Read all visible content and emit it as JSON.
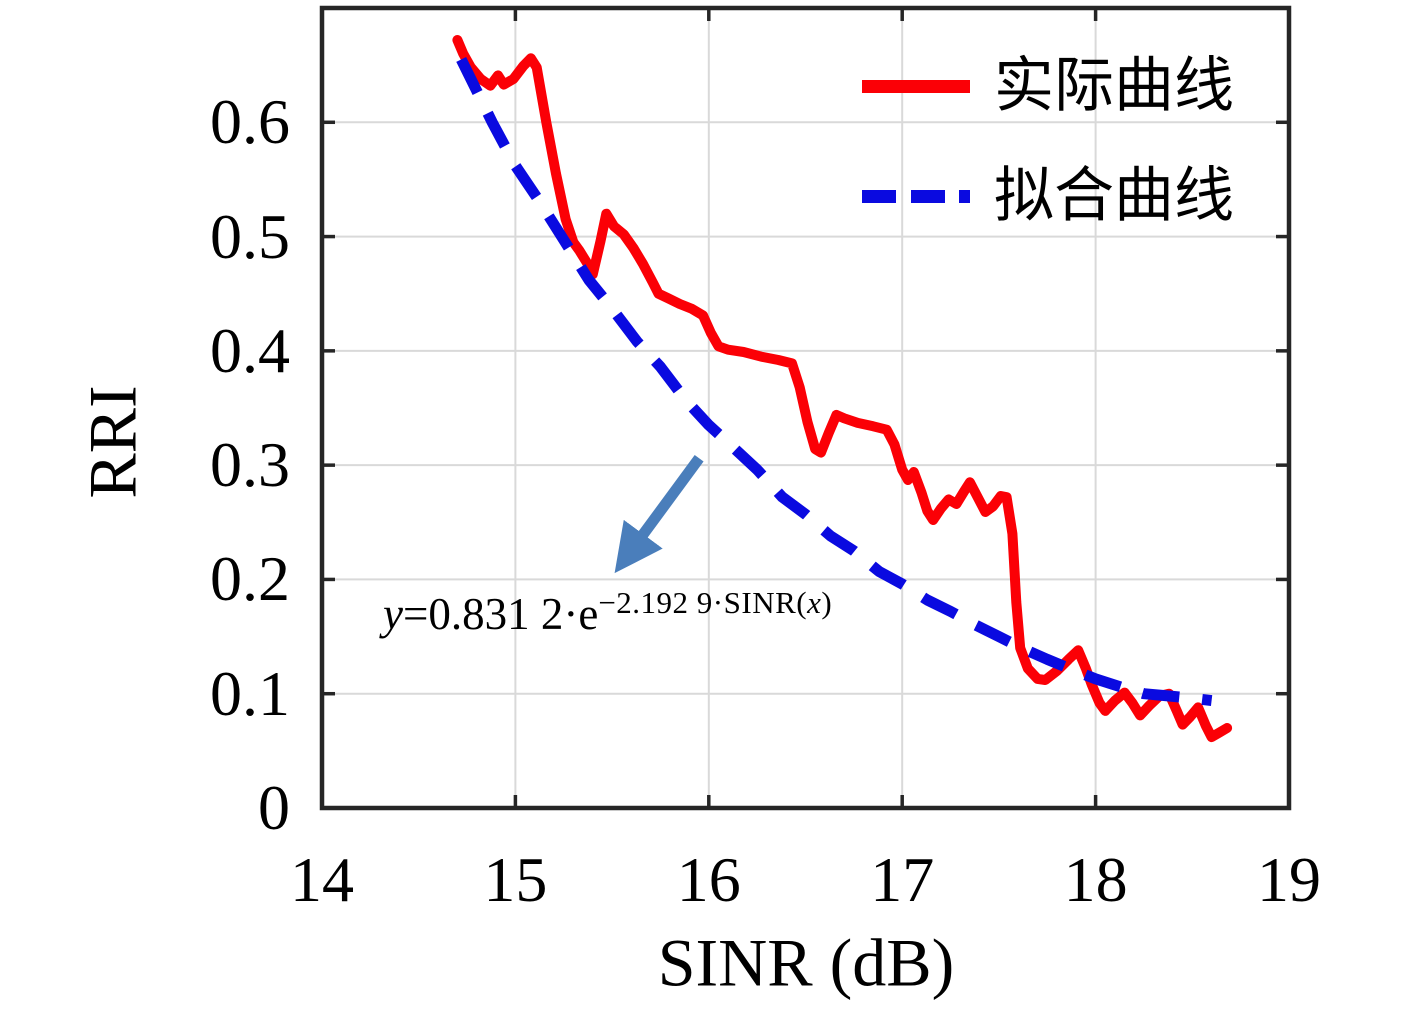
{
  "chart_data": {
    "type": "line",
    "title": "",
    "xlabel": "SINR (dB)",
    "ylabel": "RRI",
    "xlim": [
      14,
      19
    ],
    "ylim": [
      0,
      0.7
    ],
    "xticks": [
      14,
      15,
      16,
      17,
      18,
      19
    ],
    "xtick_labels": [
      "14",
      "15",
      "16",
      "17",
      "18",
      "19"
    ],
    "yticks": [
      0,
      0.1,
      0.2,
      0.3,
      0.4,
      0.5,
      0.6
    ],
    "ytick_labels": [
      "0",
      "0.1",
      "0.2",
      "0.3",
      "0.4",
      "0.5",
      "0.6"
    ],
    "grid": true,
    "legend_position": "top-right",
    "series": [
      {
        "id": "actual",
        "name": "实际曲线",
        "color": "#fb0006",
        "style": "solid",
        "width": 10,
        "points": [
          [
            14.7,
            0.672
          ],
          [
            14.73,
            0.66
          ],
          [
            14.77,
            0.648
          ],
          [
            14.82,
            0.638
          ],
          [
            14.87,
            0.632
          ],
          [
            14.91,
            0.641
          ],
          [
            14.94,
            0.633
          ],
          [
            14.99,
            0.638
          ],
          [
            15.04,
            0.649
          ],
          [
            15.08,
            0.656
          ],
          [
            15.11,
            0.648
          ],
          [
            15.16,
            0.6
          ],
          [
            15.21,
            0.555
          ],
          [
            15.26,
            0.515
          ],
          [
            15.3,
            0.495
          ],
          [
            15.33,
            0.488
          ],
          [
            15.37,
            0.477
          ],
          [
            15.4,
            0.467
          ],
          [
            15.44,
            0.496
          ],
          [
            15.47,
            0.52
          ],
          [
            15.51,
            0.509
          ],
          [
            15.56,
            0.502
          ],
          [
            15.61,
            0.49
          ],
          [
            15.66,
            0.476
          ],
          [
            15.71,
            0.46
          ],
          [
            15.74,
            0.45
          ],
          [
            15.79,
            0.446
          ],
          [
            15.85,
            0.441
          ],
          [
            15.91,
            0.437
          ],
          [
            15.97,
            0.431
          ],
          [
            16.01,
            0.416
          ],
          [
            16.05,
            0.404
          ],
          [
            16.1,
            0.401
          ],
          [
            16.18,
            0.399
          ],
          [
            16.27,
            0.395
          ],
          [
            16.36,
            0.392
          ],
          [
            16.43,
            0.389
          ],
          [
            16.47,
            0.368
          ],
          [
            16.51,
            0.338
          ],
          [
            16.55,
            0.314
          ],
          [
            16.58,
            0.311
          ],
          [
            16.62,
            0.328
          ],
          [
            16.66,
            0.344
          ],
          [
            16.7,
            0.341
          ],
          [
            16.77,
            0.337
          ],
          [
            16.85,
            0.334
          ],
          [
            16.92,
            0.331
          ],
          [
            16.96,
            0.318
          ],
          [
            17.0,
            0.296
          ],
          [
            17.03,
            0.287
          ],
          [
            17.06,
            0.294
          ],
          [
            17.1,
            0.276
          ],
          [
            17.13,
            0.26
          ],
          [
            17.16,
            0.252
          ],
          [
            17.2,
            0.262
          ],
          [
            17.24,
            0.27
          ],
          [
            17.28,
            0.266
          ],
          [
            17.32,
            0.277
          ],
          [
            17.35,
            0.285
          ],
          [
            17.39,
            0.272
          ],
          [
            17.43,
            0.259
          ],
          [
            17.47,
            0.264
          ],
          [
            17.51,
            0.273
          ],
          [
            17.54,
            0.272
          ],
          [
            17.57,
            0.24
          ],
          [
            17.59,
            0.18
          ],
          [
            17.61,
            0.14
          ],
          [
            17.65,
            0.122
          ],
          [
            17.7,
            0.113
          ],
          [
            17.74,
            0.112
          ],
          [
            17.8,
            0.12
          ],
          [
            17.86,
            0.13
          ],
          [
            17.91,
            0.138
          ],
          [
            17.95,
            0.122
          ],
          [
            17.98,
            0.108
          ],
          [
            18.02,
            0.092
          ],
          [
            18.05,
            0.085
          ],
          [
            18.1,
            0.094
          ],
          [
            18.15,
            0.101
          ],
          [
            18.19,
            0.092
          ],
          [
            18.23,
            0.081
          ],
          [
            18.28,
            0.09
          ],
          [
            18.33,
            0.098
          ],
          [
            18.38,
            0.1
          ],
          [
            18.42,
            0.085
          ],
          [
            18.45,
            0.073
          ],
          [
            18.49,
            0.08
          ],
          [
            18.53,
            0.088
          ],
          [
            18.57,
            0.072
          ],
          [
            18.6,
            0.062
          ],
          [
            18.64,
            0.066
          ],
          [
            18.68,
            0.07
          ]
        ]
      },
      {
        "id": "fitted",
        "name": "拟合曲线",
        "color": "#0a0ae0",
        "style": "dashed",
        "width": 11,
        "dash": "37 23",
        "points": [
          [
            14.72,
            0.655
          ],
          [
            14.88,
            0.6
          ],
          [
            15.0,
            0.562
          ],
          [
            15.12,
            0.532
          ],
          [
            15.25,
            0.497
          ],
          [
            15.38,
            0.462
          ],
          [
            15.5,
            0.437
          ],
          [
            15.63,
            0.408
          ],
          [
            15.75,
            0.386
          ],
          [
            15.88,
            0.357
          ],
          [
            16.0,
            0.335
          ],
          [
            16.13,
            0.315
          ],
          [
            16.25,
            0.296
          ],
          [
            16.38,
            0.272
          ],
          [
            16.5,
            0.257
          ],
          [
            16.63,
            0.238
          ],
          [
            16.75,
            0.225
          ],
          [
            16.88,
            0.207
          ],
          [
            17.0,
            0.196
          ],
          [
            17.13,
            0.182
          ],
          [
            17.25,
            0.172
          ],
          [
            17.38,
            0.16
          ],
          [
            17.5,
            0.15
          ],
          [
            17.63,
            0.139
          ],
          [
            17.75,
            0.13
          ],
          [
            17.88,
            0.121
          ],
          [
            18.0,
            0.113
          ],
          [
            18.13,
            0.106
          ],
          [
            18.25,
            0.1
          ],
          [
            18.38,
            0.098
          ],
          [
            18.5,
            0.096
          ],
          [
            18.6,
            0.094
          ]
        ]
      }
    ],
    "annotation": {
      "text": "y=0.831 2·e−2.192 9·SINR(x)",
      "arrow": {
        "from": [
          15.95,
          0.306
        ],
        "to": [
          15.55,
          0.214
        ],
        "color": "#4a7ebb"
      }
    }
  },
  "axes": {
    "x_title": "SINR (dB)",
    "y_title": "RRI"
  },
  "legend": [
    {
      "label": "实际曲线"
    },
    {
      "label": "拟合曲线"
    }
  ],
  "annotation_parts": {
    "lhs": "y",
    "base": "=0.831 2·e",
    "exp_pre": "−2.192 9·SINR(",
    "exp_var": "x",
    "exp_post": ")"
  },
  "colors": {
    "actual_curve": "#fb0006",
    "fitted_curve": "#0a0ae0",
    "arrow": "#4a7ebb",
    "gridline": "#d9d9d9",
    "plot_border": "#262626"
  }
}
